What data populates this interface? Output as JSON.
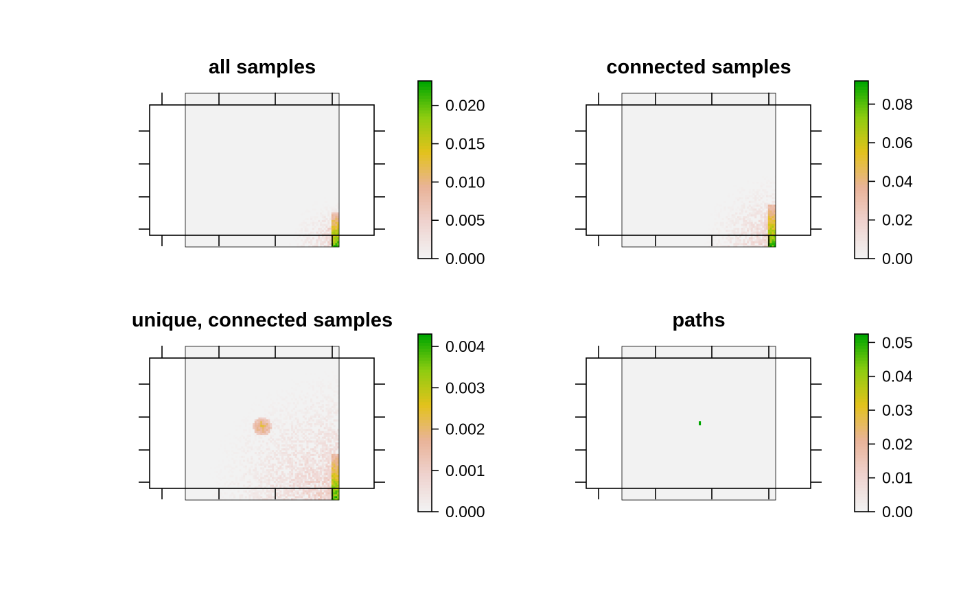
{
  "chart_data": [
    {
      "type": "heatmap",
      "title": "all samples",
      "xlabel": "",
      "ylabel": "",
      "legend": {
        "range": [
          0,
          0.0232
        ],
        "ticks": [
          "0.000",
          "0.005",
          "0.010",
          "0.015",
          "0.020"
        ],
        "tick_values": [
          0,
          0.005,
          0.01,
          0.015,
          0.02
        ],
        "placement": "right"
      },
      "background_value": 0,
      "features": [
        {
          "kind": "corner-gradient",
          "corner": "bottom-right",
          "radius_frac": 0.35,
          "max_value": 0.006
        },
        {
          "kind": "edge-strip",
          "edge": "right",
          "from_frac": 0.78,
          "max_value": 0.0232
        }
      ]
    },
    {
      "type": "heatmap",
      "title": "connected samples",
      "xlabel": "",
      "ylabel": "",
      "legend": {
        "range": [
          0,
          0.092
        ],
        "ticks": [
          "0.00",
          "0.02",
          "0.04",
          "0.06",
          "0.08"
        ],
        "tick_values": [
          0,
          0.02,
          0.04,
          0.06,
          0.08
        ],
        "placement": "right"
      },
      "background_value": 0,
      "features": [
        {
          "kind": "corner-gradient",
          "corner": "bottom-right",
          "radius_frac": 0.5,
          "max_value": 0.025
        },
        {
          "kind": "edge-strip",
          "edge": "right",
          "from_frac": 0.72,
          "max_value": 0.092
        }
      ]
    },
    {
      "type": "heatmap",
      "title": "unique, connected samples",
      "xlabel": "",
      "ylabel": "",
      "legend": {
        "range": [
          0,
          0.0043
        ],
        "ticks": [
          "0.000",
          "0.001",
          "0.002",
          "0.003",
          "0.004"
        ],
        "tick_values": [
          0,
          0.001,
          0.002,
          0.003,
          0.004
        ],
        "placement": "right"
      },
      "background_value": 0,
      "features": [
        {
          "kind": "corner-gradient",
          "corner": "bottom-right",
          "radius_frac": 0.9,
          "max_value": 0.0012
        },
        {
          "kind": "hotspot",
          "x_frac": 0.5,
          "y_frac": 0.52,
          "radius_frac": 0.06,
          "max_value": 0.003
        },
        {
          "kind": "edge-strip",
          "edge": "right",
          "from_frac": 0.7,
          "max_value": 0.0043
        }
      ]
    },
    {
      "type": "heatmap",
      "title": "paths",
      "xlabel": "",
      "ylabel": "",
      "legend": {
        "range": [
          0,
          0.0525
        ],
        "ticks": [
          "0.00",
          "0.01",
          "0.02",
          "0.03",
          "0.04",
          "0.05"
        ],
        "tick_values": [
          0,
          0.01,
          0.02,
          0.03,
          0.04,
          0.05
        ],
        "placement": "right"
      },
      "background_value": 0,
      "features": [
        {
          "kind": "single-cell",
          "x_frac": 0.505,
          "y_frac": 0.5,
          "value": 0.0525
        }
      ]
    }
  ],
  "colors": {
    "palette": [
      "#F2F2F2",
      "#EFD3CF",
      "#E9B398",
      "#E3C21C",
      "#8ECC10",
      "#00A600"
    ],
    "axis": "#000000"
  }
}
